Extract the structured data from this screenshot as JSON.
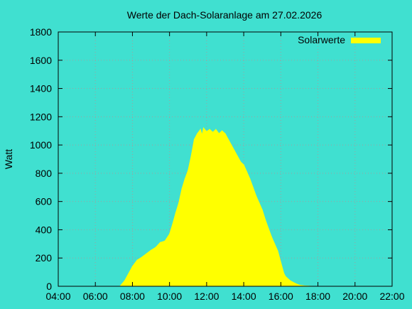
{
  "chart_data": {
    "type": "area",
    "title": "Werte der Dach-Solaranlage am 27.02.2026",
    "xlabel": "",
    "ylabel": "Watt",
    "xlim": [
      "04:00",
      "22:00"
    ],
    "ylim": [
      0,
      1800
    ],
    "x_ticks": [
      "04:00",
      "06:00",
      "08:00",
      "10:00",
      "12:00",
      "14:00",
      "16:00",
      "18:00",
      "20:00",
      "22:00"
    ],
    "y_ticks": [
      0,
      200,
      400,
      600,
      800,
      1000,
      1200,
      1400,
      1600,
      1800
    ],
    "grid": true,
    "legend_position": "top-right",
    "colors": {
      "background": "#40e0d0",
      "series": "#ffff00",
      "grid": "#a0a0a0",
      "axis": "#000000"
    },
    "series": [
      {
        "name": "Solarwerte",
        "x": [
          "07:20",
          "07:35",
          "07:50",
          "08:00",
          "08:15",
          "08:30",
          "08:45",
          "09:00",
          "09:15",
          "09:30",
          "09:45",
          "10:00",
          "10:10",
          "10:20",
          "10:30",
          "10:40",
          "10:50",
          "11:00",
          "11:10",
          "11:20",
          "11:30",
          "11:40",
          "11:45",
          "11:50",
          "12:00",
          "12:10",
          "12:20",
          "12:30",
          "12:40",
          "12:50",
          "13:00",
          "13:10",
          "13:20",
          "13:30",
          "13:40",
          "13:50",
          "14:00",
          "14:10",
          "14:20",
          "14:30",
          "14:40",
          "14:50",
          "15:00",
          "15:10",
          "15:20",
          "15:30",
          "15:40",
          "15:50",
          "16:00",
          "16:10",
          "16:15",
          "16:20",
          "16:30",
          "16:45",
          "17:00",
          "17:15",
          "17:30",
          "17:40"
        ],
        "y": [
          0,
          40,
          100,
          140,
          185,
          205,
          230,
          255,
          275,
          310,
          320,
          370,
          440,
          520,
          590,
          690,
          760,
          820,
          920,
          1040,
          1080,
          1110,
          1070,
          1120,
          1095,
          1110,
          1090,
          1110,
          1080,
          1100,
          1080,
          1040,
          1000,
          960,
          920,
          880,
          860,
          810,
          760,
          700,
          640,
          590,
          540,
          470,
          410,
          350,
          300,
          250,
          170,
          90,
          70,
          60,
          40,
          22,
          8,
          3,
          1,
          0
        ]
      }
    ]
  }
}
